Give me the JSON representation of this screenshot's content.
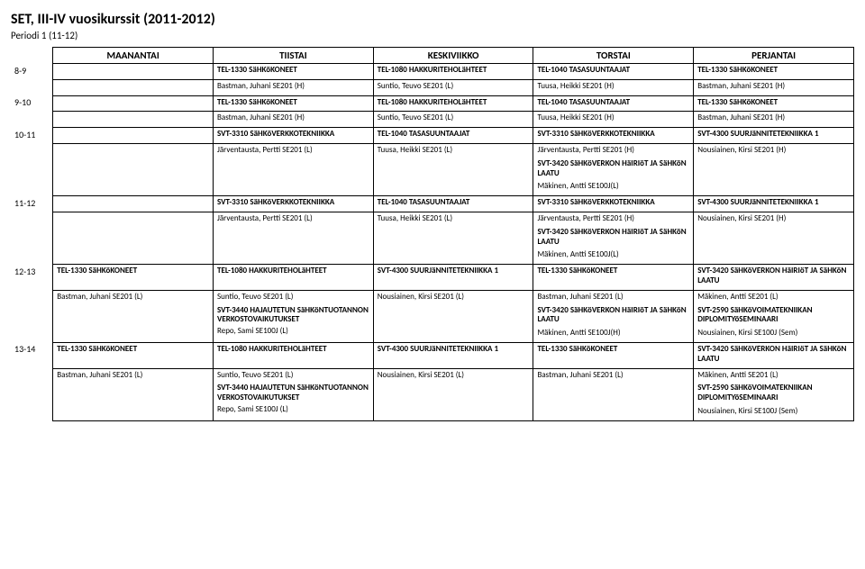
{
  "title": "SET, III-IV vuosikurssit (2011-2012)",
  "subtitle": "Periodi 1 (11-12)",
  "days": [
    "MAANANTAI",
    "TIISTAI",
    "KESKIVIIKKO",
    "TORSTAI",
    "PERJANTAI"
  ],
  "rows": [
    {
      "time": "8-9",
      "cells": [
        {
          "lines": []
        },
        {
          "lines": [
            {
              "t": "TEL-1330 SäHKöKONEET",
              "b": true
            }
          ]
        },
        {
          "lines": [
            {
              "t": "TEL-1080 HAKKURITEHOLäHTEET",
              "b": true
            }
          ]
        },
        {
          "lines": [
            {
              "t": "TEL-1040 TASASUUNTAAJAT",
              "b": true
            }
          ]
        },
        {
          "lines": [
            {
              "t": "TEL-1330 SäHKöKONEET",
              "b": true
            }
          ]
        }
      ]
    },
    {
      "time": "",
      "cells": [
        {
          "lines": []
        },
        {
          "lines": [
            {
              "t": "Bastman, Juhani  SE201 (H)"
            }
          ]
        },
        {
          "lines": [
            {
              "t": "Suntio, Teuvo  SE201 (L)"
            }
          ]
        },
        {
          "lines": [
            {
              "t": "Tuusa, Heikki  SE201 (H)"
            }
          ]
        },
        {
          "lines": [
            {
              "t": "Bastman, Juhani  SE201 (H)"
            }
          ]
        }
      ]
    },
    {
      "time": "9-10",
      "cells": [
        {
          "lines": []
        },
        {
          "lines": [
            {
              "t": "TEL-1330 SäHKöKONEET",
              "b": true
            }
          ]
        },
        {
          "lines": [
            {
              "t": "TEL-1080 HAKKURITEHOLäHTEET",
              "b": true
            }
          ]
        },
        {
          "lines": [
            {
              "t": "TEL-1040 TASASUUNTAAJAT",
              "b": true
            }
          ]
        },
        {
          "lines": [
            {
              "t": "TEL-1330 SäHKöKONEET",
              "b": true
            }
          ]
        }
      ]
    },
    {
      "time": "",
      "cells": [
        {
          "lines": []
        },
        {
          "lines": [
            {
              "t": "Bastman, Juhani  SE201 (H)"
            }
          ]
        },
        {
          "lines": [
            {
              "t": "Suntio, Teuvo  SE201 (L)"
            }
          ]
        },
        {
          "lines": [
            {
              "t": "Tuusa, Heikki  SE201 (H)"
            }
          ]
        },
        {
          "lines": [
            {
              "t": "Bastman, Juhani  SE201 (H)"
            }
          ]
        }
      ]
    },
    {
      "time": "10-11",
      "cells": [
        {
          "lines": []
        },
        {
          "lines": [
            {
              "t": "SVT-3310 SäHKöVERKKOTEKNIIKKA",
              "b": true
            }
          ]
        },
        {
          "lines": [
            {
              "t": "TEL-1040 TASASUUNTAAJAT",
              "b": true
            }
          ]
        },
        {
          "lines": [
            {
              "t": "SVT-3310 SäHKöVERKKOTEKNIIKKA",
              "b": true
            }
          ]
        },
        {
          "lines": [
            {
              "t": "SVT-4300 SUURJäNNITETEKNIIKKA 1",
              "b": true
            }
          ]
        }
      ]
    },
    {
      "time": "",
      "cells": [
        {
          "lines": []
        },
        {
          "lines": [
            {
              "t": "Järventausta, Pertti  SE201 (L)"
            }
          ]
        },
        {
          "lines": [
            {
              "t": "Tuusa, Heikki  SE201 (L)"
            }
          ]
        },
        {
          "lines": [
            {
              "t": "Järventausta, Pertti  SE201 (H)"
            },
            {
              "t": "SVT-3420 SäHKöVERKON HäIRIöT JA SäHKöN LAATU",
              "b": true,
              "sub": true
            },
            {
              "t": "Mäkinen, Antti  SE100J(L)",
              "sub": true
            }
          ]
        },
        {
          "lines": [
            {
              "t": "Nousiainen, Kirsi  SE201 (H)"
            }
          ]
        }
      ]
    },
    {
      "time": "11-12",
      "cells": [
        {
          "lines": []
        },
        {
          "lines": [
            {
              "t": "SVT-3310 SäHKöVERKKOTEKNIIKKA",
              "b": true
            }
          ]
        },
        {
          "lines": [
            {
              "t": "TEL-1040 TASASUUNTAAJAT",
              "b": true
            }
          ]
        },
        {
          "lines": [
            {
              "t": "SVT-3310 SäHKöVERKKOTEKNIIKKA",
              "b": true
            }
          ]
        },
        {
          "lines": [
            {
              "t": "SVT-4300 SUURJäNNITETEKNIIKKA 1",
              "b": true
            }
          ]
        }
      ]
    },
    {
      "time": "",
      "cells": [
        {
          "lines": []
        },
        {
          "lines": [
            {
              "t": "Järventausta, Pertti  SE201 (L)"
            }
          ]
        },
        {
          "lines": [
            {
              "t": "Tuusa, Heikki  SE201 (L)"
            }
          ]
        },
        {
          "lines": [
            {
              "t": "Järventausta, Pertti  SE201 (H)"
            },
            {
              "t": "SVT-3420 SäHKöVERKON HäIRIöT JA SäHKöN LAATU",
              "b": true,
              "sub": true
            },
            {
              "t": "Mäkinen, Antti  SE100J(L)",
              "sub": true
            }
          ]
        },
        {
          "lines": [
            {
              "t": "Nousiainen, Kirsi  SE201 (H)"
            }
          ]
        }
      ]
    },
    {
      "time": "12-13",
      "cells": [
        {
          "lines": [
            {
              "t": "TEL-1330 SäHKöKONEET",
              "b": true
            }
          ]
        },
        {
          "lines": [
            {
              "t": "TEL-1080 HAKKURITEHOLäHTEET",
              "b": true
            }
          ]
        },
        {
          "lines": [
            {
              "t": "SVT-4300 SUURJäNNITETEKNIIKKA 1",
              "b": true
            }
          ]
        },
        {
          "lines": [
            {
              "t": "TEL-1330 SäHKöKONEET",
              "b": true
            }
          ]
        },
        {
          "lines": [
            {
              "t": "SVT-3420 SäHKöVERKON HäIRIöT JA SäHKöN LAATU",
              "b": true
            }
          ]
        }
      ]
    },
    {
      "time": "",
      "cells": [
        {
          "lines": [
            {
              "t": "Bastman, Juhani  SE201 (L)"
            }
          ]
        },
        {
          "lines": [
            {
              "t": "Suntio, Teuvo  SE201 (L)"
            },
            {
              "t": "SVT-3440 HAJAUTETUN SäHKöNTUOTANNON VERKOSTOVAIKUTUKSET",
              "b": true,
              "sub": true
            },
            {
              "t": "Repo, Sami  SE100J (L)"
            }
          ]
        },
        {
          "lines": [
            {
              "t": "Nousiainen, Kirsi  SE201 (L)"
            }
          ]
        },
        {
          "lines": [
            {
              "t": "Bastman, Juhani  SE201 (L)"
            },
            {
              "t": "SVT-3420 SäHKöVERKON HäIRIöT JA SäHKöN LAATU",
              "b": true,
              "sub": true
            },
            {
              "t": "Mäkinen, Antti  SE100J(H)",
              "sub": true
            }
          ]
        },
        {
          "lines": [
            {
              "t": "Mäkinen, Antti  SE201 (L)"
            },
            {
              "t": "SVT-2590 SäHKöVOIMATEKNIIKAN DIPLOMITYöSEMINAARI",
              "b": true,
              "sub": true
            },
            {
              "t": "Nousiainen, Kirsi  SE100J (Sem)",
              "sub": true
            }
          ]
        }
      ]
    },
    {
      "time": "13-14",
      "cells": [
        {
          "lines": [
            {
              "t": "TEL-1330 SäHKöKONEET",
              "b": true
            }
          ]
        },
        {
          "lines": [
            {
              "t": "TEL-1080 HAKKURITEHOLäHTEET",
              "b": true
            }
          ]
        },
        {
          "lines": [
            {
              "t": "SVT-4300 SUURJäNNITETEKNIIKKA 1",
              "b": true
            }
          ]
        },
        {
          "lines": [
            {
              "t": "TEL-1330 SäHKöKONEET",
              "b": true
            }
          ]
        },
        {
          "lines": [
            {
              "t": "SVT-3420 SäHKöVERKON HäIRIöT JA SäHKöN LAATU",
              "b": true
            }
          ]
        }
      ]
    },
    {
      "time": "",
      "cells": [
        {
          "lines": [
            {
              "t": "Bastman, Juhani  SE201 (L)"
            }
          ]
        },
        {
          "lines": [
            {
              "t": "Suntio, Teuvo  SE201 (L)"
            },
            {
              "t": "SVT-3440 HAJAUTETUN SäHKöNTUOTANNON VERKOSTOVAIKUTUKSET",
              "b": true,
              "sub": true
            },
            {
              "t": "Repo, Sami  SE100J (L)"
            }
          ]
        },
        {
          "lines": [
            {
              "t": "Nousiainen, Kirsi  SE201 (L)"
            }
          ]
        },
        {
          "lines": [
            {
              "t": "Bastman, Juhani  SE201 (L)"
            }
          ]
        },
        {
          "lines": [
            {
              "t": "Mäkinen, Antti  SE201 (L)"
            },
            {
              "t": "SVT-2590 SäHKöVOIMATEKNIIKAN DIPLOMITYöSEMINAARI",
              "b": true,
              "sub": true
            },
            {
              "t": "Nousiainen, Kirsi  SE100J (Sem)",
              "sub": true
            }
          ]
        }
      ]
    }
  ]
}
